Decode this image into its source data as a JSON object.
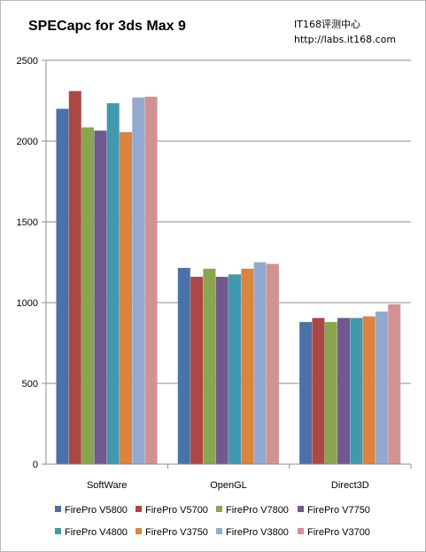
{
  "chart_data": {
    "type": "bar",
    "title": "SPECapc for 3ds Max 9",
    "credit_lines": [
      "IT168评测中心",
      "http://labs.it168.com"
    ],
    "xlabel": "",
    "ylabel": "",
    "categories": [
      "SoftWare",
      "OpenGL",
      "Direct3D"
    ],
    "ylim": [
      0,
      2500
    ],
    "yticks": [
      0,
      500,
      1000,
      1500,
      2000,
      2500
    ],
    "grid": true,
    "legend_position": "bottom",
    "series": [
      {
        "name": "FirePro V5800",
        "color": "#4a72a8",
        "values": [
          2200,
          1215,
          880
        ]
      },
      {
        "name": "FirePro V5700",
        "color": "#ab4744",
        "values": [
          2310,
          1160,
          905
        ]
      },
      {
        "name": "FirePro V7800",
        "color": "#89a54e",
        "values": [
          2085,
          1210,
          880
        ]
      },
      {
        "name": "FirePro V7750",
        "color": "#71588f",
        "values": [
          2065,
          1160,
          905
        ]
      },
      {
        "name": "FirePro V4800",
        "color": "#4198af",
        "values": [
          2235,
          1175,
          905
        ]
      },
      {
        "name": "FirePro V3750",
        "color": "#db843d",
        "values": [
          2055,
          1210,
          915
        ]
      },
      {
        "name": "FirePro V3800",
        "color": "#93a9cf",
        "values": [
          2270,
          1250,
          945
        ]
      },
      {
        "name": "FirePro V3700",
        "color": "#d19392",
        "values": [
          2275,
          1240,
          990
        ]
      }
    ]
  }
}
